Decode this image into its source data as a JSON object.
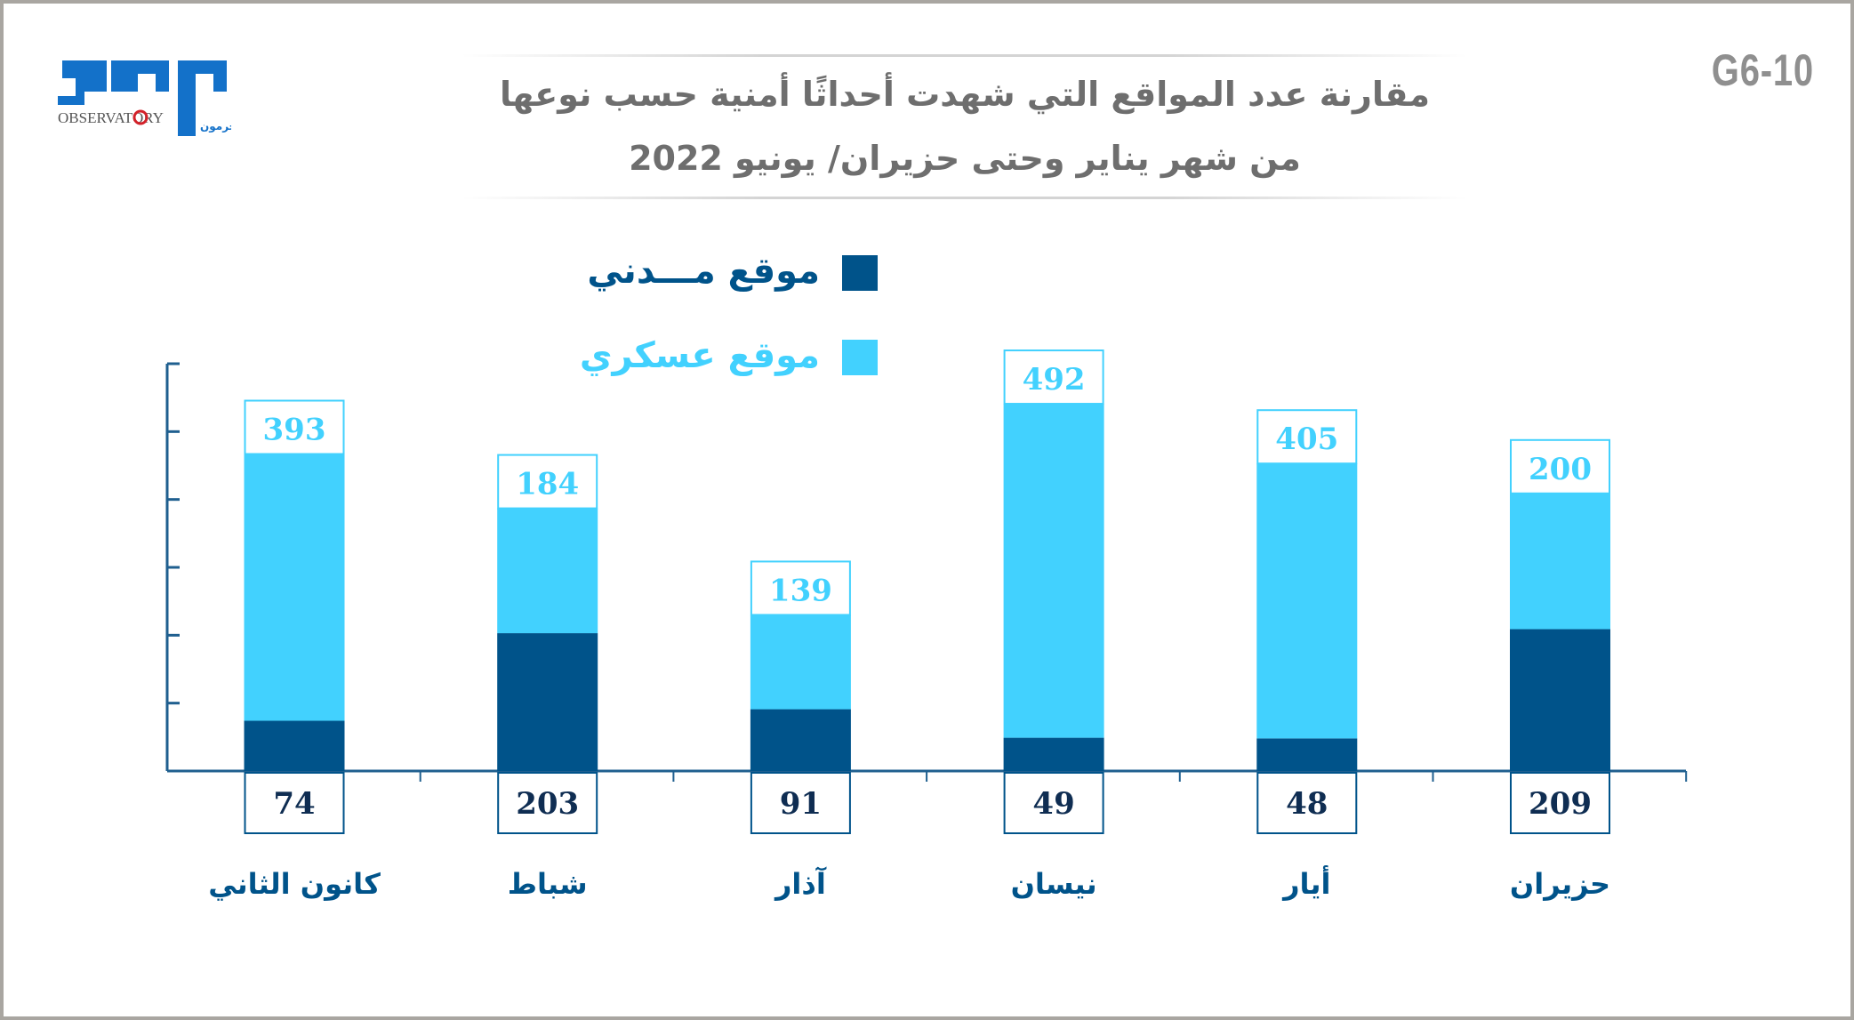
{
  "header": {
    "logo_text": "مرصد",
    "logo_sub": "OBSERVATORY",
    "logo_sub_ar": "حرمون",
    "code": "G6-10",
    "title_line1": "مقارنة عدد المواقع التي شهدت أحداثًا أمنية حسب نوعها",
    "title_line2": "من شهر يناير وحتى حزيران/ يونيو 2022"
  },
  "chart_data": {
    "type": "bar",
    "stacked": true,
    "categories": [
      "كانون الثاني",
      "شباط",
      "آذار",
      "نيسان",
      "أيار",
      "حزيران"
    ],
    "series": [
      {
        "name": "موقع مـــدني",
        "values": [
          74,
          203,
          91,
          49,
          48,
          209
        ],
        "color": "#00538a"
      },
      {
        "name": "موقع عسكري",
        "values": [
          393,
          184,
          139,
          492,
          405,
          200
        ],
        "color": "#42d1fe"
      }
    ],
    "ylim": [
      0,
      600
    ],
    "y_tick_step": 100,
    "y_tick_labels_shown": false,
    "grid": false,
    "legend_position": "top-left"
  }
}
